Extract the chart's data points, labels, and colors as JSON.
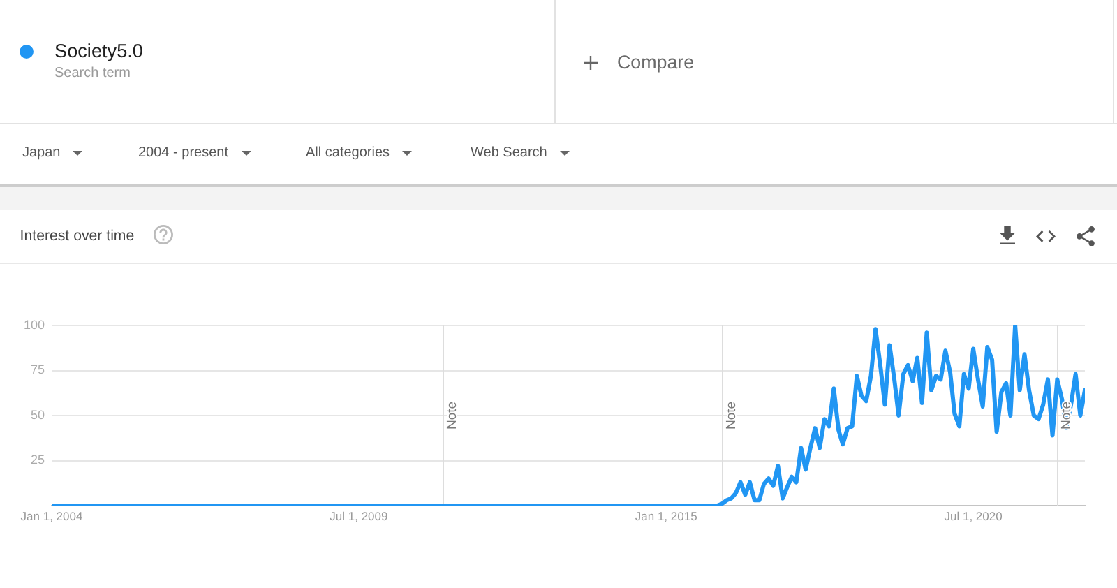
{
  "chart_data": {
    "type": "line",
    "title": "Interest over time",
    "annotations": [
      "Search term",
      "Compare",
      "Japan",
      "2004 - present",
      "All categories",
      "Web Search"
    ],
    "xlim": [
      "2004-01",
      "2022-07"
    ],
    "xticks": [
      {
        "value": "2004-01-01",
        "label": "Jan 1, 2004"
      },
      {
        "value": "2009-07-01",
        "label": "Jul 1, 2009"
      },
      {
        "value": "2015-01-01",
        "label": "Jan 1, 2015"
      },
      {
        "value": "2020-07-01",
        "label": "Jul 1, 2020"
      }
    ],
    "ylim": [
      0,
      100
    ],
    "yticks": [
      25,
      50,
      75,
      100
    ],
    "grid": "y",
    "legend": "top left",
    "marker": "none",
    "line_style": "solid",
    "ref_lines": [
      {
        "axis": "x",
        "value": "2011-01",
        "label": "Note",
        "color": "#dddddd"
      },
      {
        "axis": "x",
        "value": "2016-01",
        "label": "Note",
        "color": "#dddddd"
      },
      {
        "axis": "x",
        "value": "2022-01",
        "label": "Note",
        "color": "#dddddd"
      }
    ],
    "series": [
      {
        "name": "Society5.0",
        "color": "#2196f3",
        "x": [
          "2004-01",
          "2015-12",
          "2016-01",
          "2016-02",
          "2016-03",
          "2016-04",
          "2016-05",
          "2016-06",
          "2016-07",
          "2016-08",
          "2016-09",
          "2016-10",
          "2016-11",
          "2016-12",
          "2017-01",
          "2017-02",
          "2017-03",
          "2017-04",
          "2017-05",
          "2017-06",
          "2017-07",
          "2017-08",
          "2017-09",
          "2017-10",
          "2017-11",
          "2017-12",
          "2018-01",
          "2018-02",
          "2018-03",
          "2018-04",
          "2018-05",
          "2018-06",
          "2018-07",
          "2018-08",
          "2018-09",
          "2018-10",
          "2018-11",
          "2018-12",
          "2019-01",
          "2019-02",
          "2019-03",
          "2019-04",
          "2019-05",
          "2019-06",
          "2019-07",
          "2019-08",
          "2019-09",
          "2019-10",
          "2019-11",
          "2019-12",
          "2020-01",
          "2020-02",
          "2020-03",
          "2020-04",
          "2020-05",
          "2020-06",
          "2020-07",
          "2020-08",
          "2020-09",
          "2020-10",
          "2020-11",
          "2020-12",
          "2021-01",
          "2021-02",
          "2021-03",
          "2021-04",
          "2021-05",
          "2021-06",
          "2021-07",
          "2021-08",
          "2021-09",
          "2021-10",
          "2021-11",
          "2021-12",
          "2022-01",
          "2022-02",
          "2022-03",
          "2022-04",
          "2022-05",
          "2022-06",
          "2022-07"
        ],
        "values": [
          0,
          0,
          1,
          3,
          4,
          7,
          13,
          6,
          13,
          3,
          3,
          12,
          15,
          11,
          22,
          4,
          10,
          16,
          13,
          32,
          20,
          32,
          43,
          32,
          48,
          44,
          65,
          42,
          34,
          43,
          44,
          72,
          61,
          58,
          72,
          98,
          78,
          56,
          89,
          70,
          50,
          73,
          78,
          69,
          82,
          57,
          96,
          64,
          72,
          70,
          86,
          74,
          51,
          44,
          73,
          65,
          87,
          70,
          55,
          88,
          81,
          41,
          63,
          68,
          50,
          100,
          64,
          84,
          64,
          50,
          48,
          56,
          70,
          39,
          70,
          59,
          43,
          56,
          73,
          50,
          64
        ]
      }
    ]
  }
}
